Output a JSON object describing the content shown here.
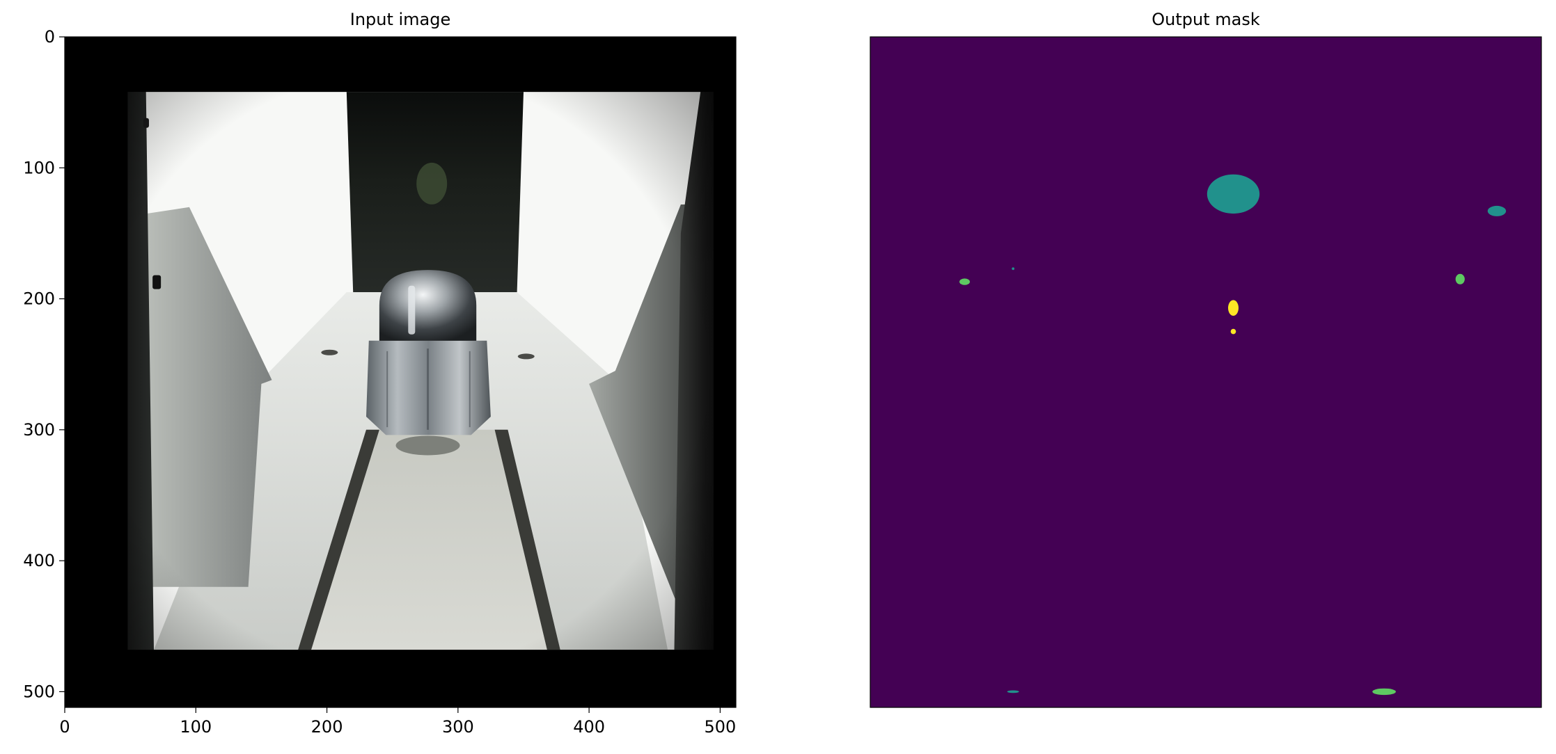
{
  "chart_data": [
    {
      "type": "image",
      "title": "Input image",
      "x_ticks": [
        0,
        100,
        200,
        300,
        400,
        500
      ],
      "y_ticks": [
        0,
        100,
        200,
        300,
        400,
        500
      ],
      "xlim": [
        0,
        512
      ],
      "ylim": [
        512,
        0
      ],
      "image": {
        "description_colors": {
          "background": "#000000",
          "rail": "#d8dbd7",
          "bright": "#ffffff",
          "nut": "#9aa1a6"
        }
      }
    },
    {
      "type": "heatmap",
      "title": "Output mask",
      "colormap": "viridis",
      "background_color": "#440154",
      "xlim": [
        0,
        512
      ],
      "ylim": [
        512,
        0
      ],
      "show_ticks": false,
      "regions": [
        {
          "class": "teal",
          "color": "#21918c",
          "cx": 277,
          "cy": 120,
          "rx": 20,
          "ry": 15
        },
        {
          "class": "teal",
          "color": "#21918c",
          "cx": 478,
          "cy": 133,
          "rx": 7,
          "ry": 4
        },
        {
          "class": "green",
          "color": "#5ec962",
          "cx": 72,
          "cy": 187,
          "rx": 4,
          "ry": 2.5
        },
        {
          "class": "green",
          "color": "#5ec962",
          "cx": 450,
          "cy": 185,
          "rx": 3.5,
          "ry": 4
        },
        {
          "class": "green",
          "color": "#5ec962",
          "cx": 392,
          "cy": 500,
          "rx": 9,
          "ry": 2.5
        },
        {
          "class": "yellow",
          "color": "#fde725",
          "cx": 277,
          "cy": 207,
          "rx": 4,
          "ry": 6
        },
        {
          "class": "yellow",
          "color": "#fde725",
          "cx": 277,
          "cy": 225,
          "rx": 2,
          "ry": 2
        },
        {
          "class": "teal",
          "color": "#21918c",
          "cx": 109,
          "cy": 500,
          "rx": 4.5,
          "ry": 1
        },
        {
          "class": "teal",
          "color": "#21918c",
          "cx": 109,
          "cy": 177,
          "rx": 1,
          "ry": 1
        }
      ]
    }
  ]
}
